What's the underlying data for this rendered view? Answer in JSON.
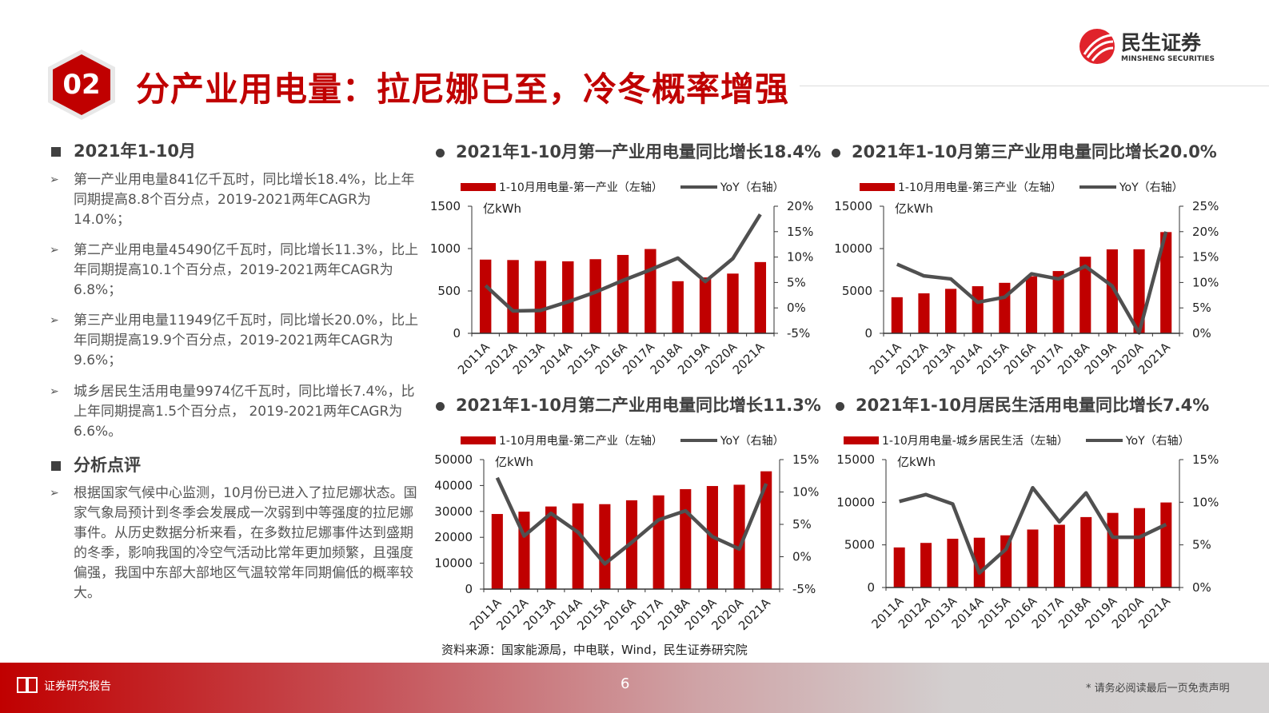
{
  "header": {
    "section_number": "02",
    "title": "分产业用电量：拉尼娜已至，冷冬概率增强",
    "logo": {
      "cn": "民生证券",
      "en": "MINSHENG SECURITIES"
    }
  },
  "colors": {
    "accent": "#c00000",
    "line": "#505050",
    "text": "#404040"
  },
  "left": {
    "section1_title": "2021年1-10月",
    "bullets": [
      "第一产业用电量841亿千瓦时，同比增长18.4%，比上年同期提高8.8个百分点，2019-2021两年CAGR为14.0%；",
      "第二产业用电量45490亿千瓦时，同比增长11.3%，比上年同期提高10.1个百分点，2019-2021两年CAGR为6.8%；",
      "第三产业用电量11949亿千瓦时，同比增长20.0%，比上年同期提高19.9个百分点，2019-2021两年CAGR为9.6%；",
      "城乡居民生活用电量9974亿千瓦时，同比增长7.4%，比上年同期提高1.5个百分点， 2019-2021两年CAGR为6.6%。"
    ],
    "section2_title": "分析点评",
    "analysis": "根据国家气候中心监测，10月份已进入了拉尼娜状态。国家气象局预计到冬季会发展成一次弱到中等强度的拉尼娜事件。从历史数据分析来看，在多数拉尼娜事件达到盛期的冬季，影响我国的冷空气活动比常年更加频繁，且强度偏强，我国中东部大部地区气温较常年同期偏低的概率较大。"
  },
  "chart_data": [
    {
      "type": "bar+line",
      "title": "2021年1-10月第一产业用电量同比增长18.4%",
      "unit_label": "亿kWh",
      "categories": [
        "2011A",
        "2012A",
        "2013A",
        "2014A",
        "2015A",
        "2016A",
        "2017A",
        "2018A",
        "2019A",
        "2020A",
        "2021A"
      ],
      "series": [
        {
          "name": "1-10月用电量-第一产业（左轴）",
          "type": "bar",
          "axis": "left",
          "values": [
            870,
            865,
            855,
            850,
            875,
            925,
            995,
            615,
            660,
            705,
            841
          ]
        },
        {
          "name": "YoY（右轴）",
          "type": "line",
          "axis": "right",
          "values": [
            4.4,
            -0.6,
            -0.5,
            1.2,
            3.1,
            5.4,
            7.5,
            9.8,
            5.2,
            9.7,
            18.4
          ]
        }
      ],
      "left_axis": {
        "min": 0,
        "max": 1500,
        "ticks": [
          0,
          500,
          1000,
          1500
        ],
        "tick_labels": [
          "0",
          "500",
          "1000",
          "1500"
        ]
      },
      "right_axis": {
        "min": -5,
        "max": 20,
        "ticks": [
          -5,
          0,
          5,
          10,
          15,
          20
        ],
        "tick_labels": [
          "-5%",
          "0%",
          "5%",
          "10%",
          "15%",
          "20%"
        ]
      },
      "legend": "top",
      "grid": false
    },
    {
      "type": "bar+line",
      "title": "2021年1-10月第三产业用电量同比增长20.0%",
      "unit_label": "亿kWh",
      "categories": [
        "2011A",
        "2012A",
        "2013A",
        "2014A",
        "2015A",
        "2016A",
        "2017A",
        "2018A",
        "2019A",
        "2020A",
        "2021A"
      ],
      "series": [
        {
          "name": "1-10月用电量-第三产业（左轴）",
          "type": "bar",
          "axis": "left",
          "values": [
            4260,
            4720,
            5250,
            5560,
            5960,
            6730,
            7350,
            9040,
            9910,
            9920,
            11949
          ]
        },
        {
          "name": "YoY（右轴）",
          "type": "line",
          "axis": "right",
          "values": [
            13.6,
            11.3,
            10.7,
            6.1,
            7.1,
            11.7,
            10.7,
            13.2,
            9.3,
            0.1,
            20.0
          ]
        }
      ],
      "left_axis": {
        "min": 0,
        "max": 15000,
        "ticks": [
          0,
          5000,
          10000,
          15000
        ],
        "tick_labels": [
          "0",
          "5000",
          "10000",
          "15000"
        ]
      },
      "right_axis": {
        "min": 0,
        "max": 25,
        "ticks": [
          0,
          5,
          10,
          15,
          20,
          25
        ],
        "tick_labels": [
          "0%",
          "5%",
          "10%",
          "15%",
          "20%",
          "25%"
        ]
      },
      "legend": "top",
      "grid": false
    },
    {
      "type": "bar+line",
      "title": "2021年1-10月第二产业用电量同比增长11.3%",
      "unit_label": "亿kWh",
      "categories": [
        "2011A",
        "2012A",
        "2013A",
        "2014A",
        "2015A",
        "2016A",
        "2017A",
        "2018A",
        "2019A",
        "2020A",
        "2021A"
      ],
      "series": [
        {
          "name": "1-10月用电量-第二产业（左轴）",
          "type": "bar",
          "axis": "left",
          "values": [
            29000,
            29900,
            31900,
            33100,
            32800,
            34300,
            36200,
            38600,
            39800,
            40300,
            45490
          ]
        },
        {
          "name": "YoY（右轴）",
          "type": "line",
          "axis": "right",
          "values": [
            12.2,
            3.2,
            6.7,
            3.8,
            -1.1,
            2.2,
            5.7,
            7.1,
            3.1,
            1.2,
            11.3
          ]
        }
      ],
      "left_axis": {
        "min": 0,
        "max": 50000,
        "ticks": [
          0,
          10000,
          20000,
          30000,
          40000,
          50000
        ],
        "tick_labels": [
          "0",
          "10000",
          "20000",
          "30000",
          "40000",
          "50000"
        ]
      },
      "right_axis": {
        "min": -5,
        "max": 15,
        "ticks": [
          -5,
          0,
          5,
          10,
          15
        ],
        "tick_labels": [
          "-5%",
          "0%",
          "5%",
          "10%",
          "15%"
        ]
      },
      "legend": "top",
      "grid": false
    },
    {
      "type": "bar+line",
      "title": "2021年1-10月居民生活用电量同比增长7.4%",
      "unit_label": "亿kWh",
      "categories": [
        "2011A",
        "2012A",
        "2013A",
        "2014A",
        "2015A",
        "2016A",
        "2017A",
        "2018A",
        "2019A",
        "2020A",
        "2021A"
      ],
      "series": [
        {
          "name": "1-10月用电量-城乡居民生活（左轴）",
          "type": "bar",
          "axis": "left",
          "values": [
            4700,
            5230,
            5720,
            5840,
            6120,
            6800,
            7360,
            8260,
            8750,
            9310,
            9974
          ]
        },
        {
          "name": "YoY（右轴）",
          "type": "line",
          "axis": "right",
          "values": [
            10.1,
            10.9,
            9.8,
            1.7,
            4.5,
            11.7,
            7.7,
            11.1,
            5.9,
            5.9,
            7.4
          ]
        }
      ],
      "left_axis": {
        "min": 0,
        "max": 15000,
        "ticks": [
          0,
          5000,
          10000,
          15000
        ],
        "tick_labels": [
          "0",
          "5000",
          "10000",
          "15000"
        ]
      },
      "right_axis": {
        "min": 0,
        "max": 15,
        "ticks": [
          0,
          5,
          10,
          15
        ],
        "tick_labels": [
          "0%",
          "5%",
          "10%",
          "15%"
        ]
      },
      "legend": "top",
      "grid": false
    }
  ],
  "source": "资料来源：国家能源局，中电联，Wind，民生证券研究院",
  "footer": {
    "label": "证券研究报告",
    "page": "6",
    "disclaimer": "* 请务必阅读最后一页免责声明"
  }
}
